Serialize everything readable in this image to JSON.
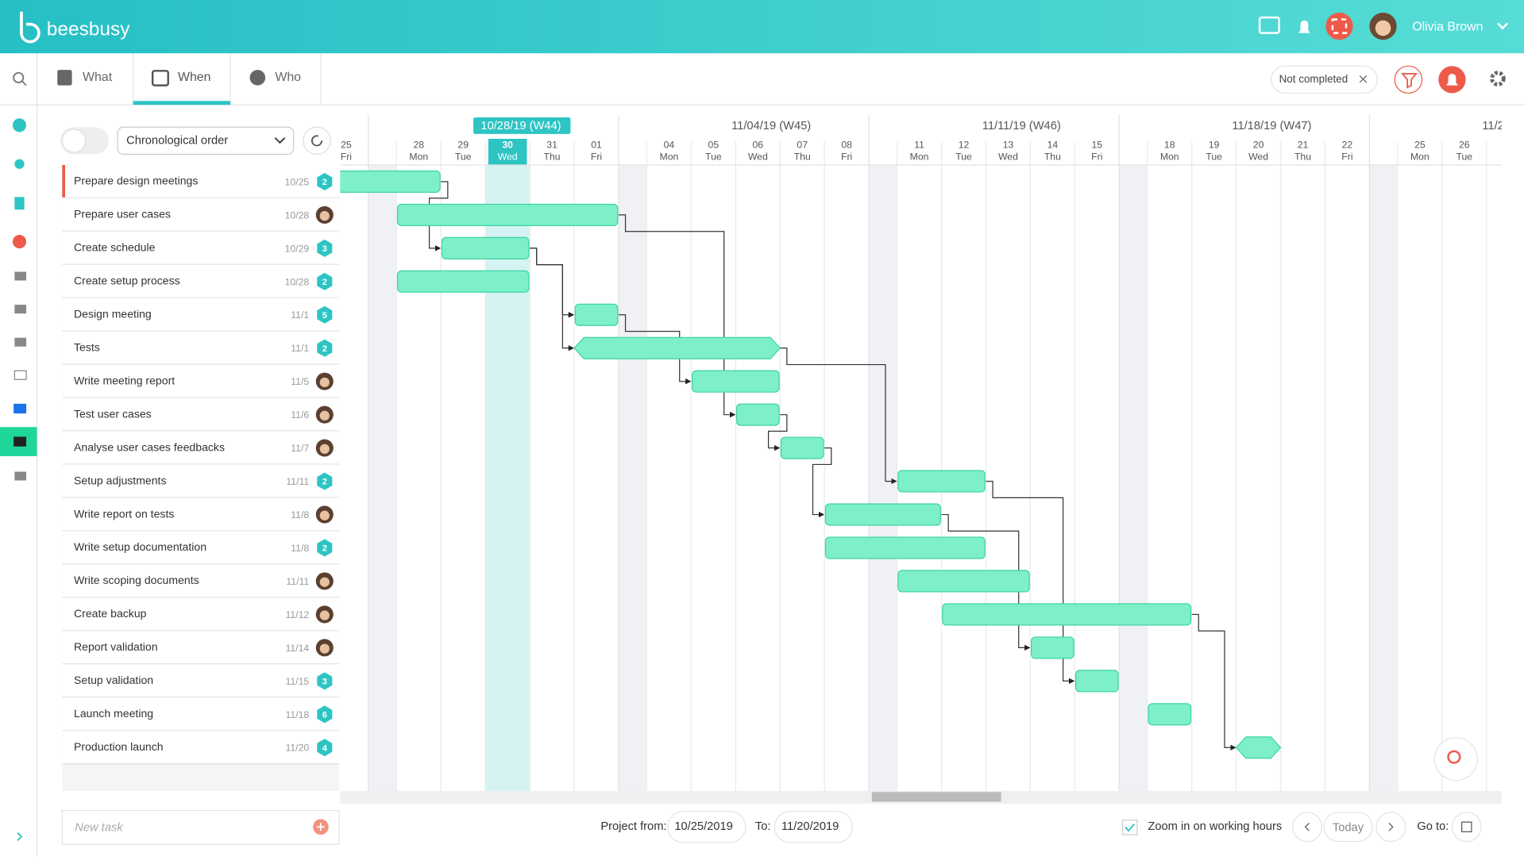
{
  "header": {
    "logo": "beesbusy",
    "user": "Olivia Brown"
  },
  "tabs": [
    "What",
    "When",
    "Who"
  ],
  "filter": "Not completed",
  "sort": "Chronological order",
  "timeline": {
    "weeks": [
      "10/28/19 (W44)",
      "11/04/19 (W45)",
      "11/11/19 (W46)",
      "11/18/19 (W47)",
      "11/2"
    ],
    "days": [
      {
        "num": "25",
        "day": "Fri"
      },
      {
        "num": "28",
        "day": "Mon"
      },
      {
        "num": "29",
        "day": "Tue"
      },
      {
        "num": "30",
        "day": "Wed"
      },
      {
        "num": "31",
        "day": "Thu"
      },
      {
        "num": "01",
        "day": "Fri"
      },
      {
        "num": "04",
        "day": "Mon"
      },
      {
        "num": "05",
        "day": "Tue"
      },
      {
        "num": "06",
        "day": "Wed"
      },
      {
        "num": "07",
        "day": "Thu"
      },
      {
        "num": "08",
        "day": "Fri"
      },
      {
        "num": "11",
        "day": "Mon"
      },
      {
        "num": "12",
        "day": "Tue"
      },
      {
        "num": "13",
        "day": "Wed"
      },
      {
        "num": "14",
        "day": "Thu"
      },
      {
        "num": "15",
        "day": "Fri"
      },
      {
        "num": "18",
        "day": "Mon"
      },
      {
        "num": "19",
        "day": "Tue"
      },
      {
        "num": "20",
        "day": "Wed"
      },
      {
        "num": "21",
        "day": "Thu"
      },
      {
        "num": "22",
        "day": "Fri"
      },
      {
        "num": "25",
        "day": "Mon"
      },
      {
        "num": "26",
        "day": "Tue"
      }
    ]
  },
  "tasks": [
    {
      "name": "Prepare design meetings",
      "date": "10/25",
      "badge": "2"
    },
    {
      "name": "Prepare user cases",
      "date": "10/28"
    },
    {
      "name": "Create schedule",
      "date": "10/29",
      "badge": "3"
    },
    {
      "name": "Create setup process",
      "date": "10/28",
      "badge": "2"
    },
    {
      "name": "Design meeting",
      "date": "11/1",
      "badge": "5"
    },
    {
      "name": "Tests",
      "date": "11/1",
      "badge": "2"
    },
    {
      "name": "Write meeting report",
      "date": "11/5"
    },
    {
      "name": "Test user cases",
      "date": "11/6"
    },
    {
      "name": "Analyse user cases feedbacks",
      "date": "11/7"
    },
    {
      "name": "Setup adjustments",
      "date": "11/11",
      "badge": "2"
    },
    {
      "name": "Write report on tests",
      "date": "11/8"
    },
    {
      "name": "Write setup documentation",
      "date": "11/8",
      "badge": "2"
    },
    {
      "name": "Write scoping documents",
      "date": "11/11"
    },
    {
      "name": "Create backup",
      "date": "11/12"
    },
    {
      "name": "Report validation",
      "date": "11/14"
    },
    {
      "name": "Setup validation",
      "date": "11/15",
      "badge": "3"
    },
    {
      "name": "Launch meeting",
      "date": "11/18",
      "badge": "6"
    },
    {
      "name": "Production launch",
      "date": "11/20",
      "badge": "4"
    }
  ],
  "footer": {
    "new_task": "New task",
    "from_label": "Project from:",
    "from": "10/25/2019",
    "to_label": "To:",
    "to": "11/20/2019",
    "zoom": "Zoom in on working hours",
    "today": "Today",
    "goto": "Go to:"
  }
}
